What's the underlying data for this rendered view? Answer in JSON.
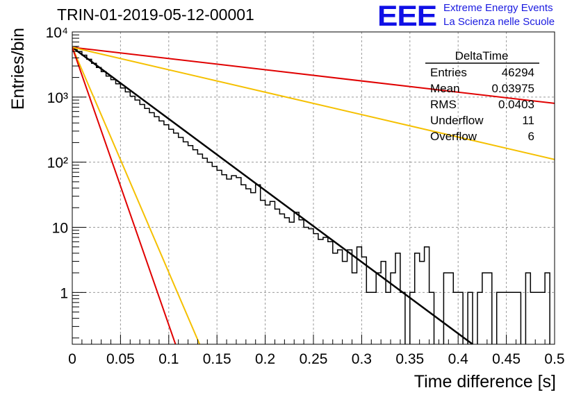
{
  "header": {
    "title": "TRIN-01-2019-05-12-00001",
    "logo_mark": "EEE",
    "logo_line1": "Extreme Energy Events",
    "logo_line2": "La Scienza nelle Scuole"
  },
  "stats": {
    "name": "DeltaTime",
    "rows": [
      {
        "label": "Entries",
        "value": "46294"
      },
      {
        "label": "Mean",
        "value": "0.03975"
      },
      {
        "label": "RMS",
        "value": "0.0403"
      },
      {
        "label": "Underflow",
        "value": "11"
      },
      {
        "label": "Overflow",
        "value": "6"
      }
    ]
  },
  "chart_data": {
    "type": "histogram",
    "xlabel": "Time difference [s]",
    "ylabel": "Entries/bin",
    "xlim": [
      0,
      0.5
    ],
    "ylim": [
      0.16,
      10000
    ],
    "yscale": "log",
    "grid": true,
    "x_ticks": [
      "0",
      "0.05",
      "0.1",
      "0.15",
      "0.2",
      "0.25",
      "0.3",
      "0.35",
      "0.4",
      "0.45",
      "0.5"
    ],
    "y_ticks": [
      "1",
      "10",
      "10²",
      "10³",
      "10⁴"
    ],
    "bin_width": 0.005,
    "histogram": {
      "name": "DeltaTime",
      "color": "#000000",
      "values": [
        5800,
        5000,
        4400,
        3800,
        3300,
        2850,
        2450,
        2100,
        1850,
        1600,
        1380,
        1200,
        1030,
        900,
        770,
        670,
        575,
        500,
        430,
        375,
        320,
        280,
        240,
        205,
        180,
        155,
        133,
        115,
        100,
        86,
        75,
        64,
        55,
        62,
        58,
        45,
        39,
        34,
        45,
        26,
        22,
        25,
        19,
        16,
        14,
        12,
        17,
        13,
        10,
        9.5,
        8,
        6.5,
        7,
        6,
        4,
        4.5,
        3,
        4.5,
        2,
        5,
        3.5,
        1,
        1,
        2,
        3,
        1,
        2,
        4,
        1,
        0.1,
        1,
        4,
        3,
        5,
        1,
        0.1,
        0.1,
        2,
        2,
        1,
        1,
        0.1,
        1,
        0.1,
        1,
        2,
        2,
        0.1,
        1,
        1,
        1,
        1,
        1,
        0.1,
        2,
        1,
        1,
        1,
        2,
        0.1
      ]
    },
    "fits": [
      {
        "color": "#000000",
        "y0": 5800,
        "x_end": 0.415,
        "y_end": 0.16
      },
      {
        "color": "#e00000",
        "y0": 5800,
        "x_end": 0.5,
        "y_end": 800
      },
      {
        "color": "#f5c000",
        "y0": 5800,
        "x_end": 0.5,
        "y_end": 110
      },
      {
        "color": "#f5c000",
        "y0": 5800,
        "x_end": 0.132,
        "y_end": 0.16
      },
      {
        "color": "#e00000",
        "y0": 5800,
        "x_end": 0.107,
        "y_end": 0.16
      }
    ]
  }
}
